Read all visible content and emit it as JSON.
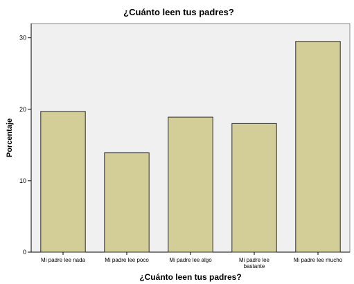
{
  "chart_data": {
    "type": "bar",
    "title": "¿Cuánto leen tus padres?",
    "xlabel": "¿Cuánto leen tus padres?",
    "ylabel": "Porcentaje",
    "categories": [
      [
        "Mi padre lee nada"
      ],
      [
        "Mi padre lee poco"
      ],
      [
        "Mi padre lee algo"
      ],
      [
        "Mi padre lee",
        "bastante"
      ],
      [
        "Mi padre lee mucho"
      ]
    ],
    "values": [
      19.7,
      13.9,
      18.9,
      18.0,
      29.5
    ],
    "ylim": [
      0,
      32
    ],
    "yticks": [
      "0",
      "10",
      "20",
      "30"
    ],
    "grid": false,
    "colors": {
      "bar_fill": "#d3ce98",
      "bar_stroke": "#2b2b2b",
      "plot_background": "#f0f0f0",
      "frame": "#8a8a8a"
    }
  }
}
